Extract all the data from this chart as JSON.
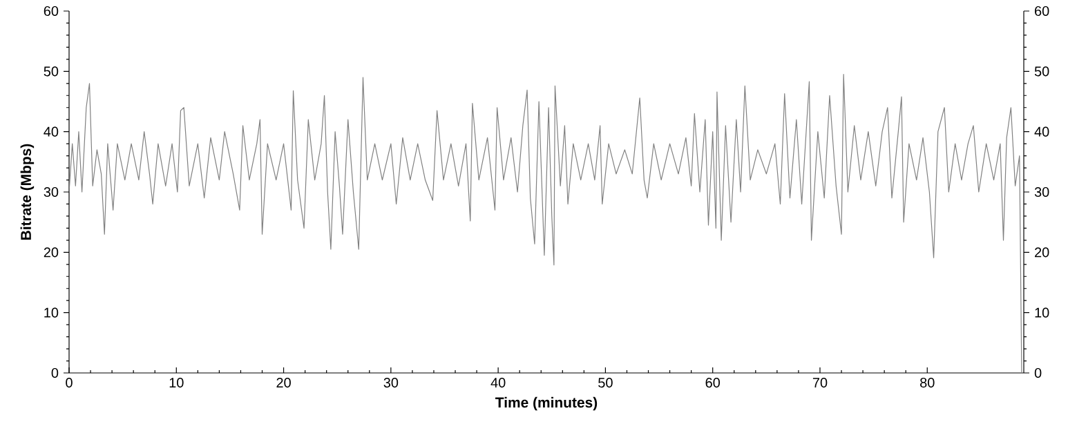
{
  "chart_data": {
    "type": "line",
    "xlabel": "Time (minutes)",
    "ylabel": "Bitrate (Mbps)",
    "xlim": [
      0,
      89
    ],
    "xticks": [
      0,
      10,
      20,
      30,
      40,
      50,
      60,
      70,
      80
    ],
    "ylim": [
      0,
      60
    ],
    "yticks": [
      0,
      10,
      20,
      30,
      40,
      50,
      60
    ],
    "y2lim": [
      0,
      60
    ],
    "y2ticks": [
      0,
      10,
      20,
      30,
      40,
      50,
      60
    ],
    "grid": false,
    "marker": "none",
    "line_style": "solid",
    "series": [
      {
        "color": "#808080",
        "x": [
          0,
          0.3,
          0.6,
          0.9,
          1.2,
          1.6,
          1.9,
          2.2,
          2.6,
          3.0,
          3.3,
          3.6,
          4.1,
          4.5,
          5.2,
          5.8,
          6.5,
          7.0,
          7.5,
          7.8,
          8.3,
          9.0,
          9.6,
          10.1,
          10.4,
          10.7,
          11.2,
          12.0,
          12.6,
          13.2,
          14.0,
          14.5,
          15.3,
          15.9,
          16.2,
          16.8,
          17.5,
          17.8,
          18.0,
          18.5,
          19.3,
          20.0,
          20.7,
          20.9,
          21.3,
          21.9,
          22.3,
          22.9,
          23.5,
          23.8,
          24.1,
          24.4,
          24.8,
          25.2,
          25.5,
          26.0,
          26.5,
          27.0,
          27.4,
          27.8,
          28.5,
          29.2,
          30.0,
          30.5,
          31.1,
          31.8,
          32.5,
          33.2,
          33.9,
          34.3,
          34.9,
          35.6,
          36.3,
          37.0,
          37.4,
          37.6,
          38.2,
          39.0,
          39.7,
          39.9,
          40.5,
          41.2,
          41.8,
          42.3,
          42.7,
          43.0,
          43.4,
          43.8,
          44.3,
          44.7,
          45.0,
          45.2,
          45.3,
          45.8,
          46.2,
          46.5,
          47.0,
          47.7,
          48.4,
          49.0,
          49.5,
          49.7,
          50.3,
          51.0,
          51.8,
          52.5,
          53.2,
          53.6,
          53.9,
          54.5,
          55.2,
          56.0,
          56.8,
          57.5,
          58.0,
          58.3,
          58.8,
          59.3,
          59.6,
          60.0,
          60.3,
          60.4,
          60.8,
          61.2,
          61.7,
          62.2,
          62.6,
          63.0,
          63.5,
          64.2,
          65.0,
          65.8,
          66.3,
          66.7,
          67.2,
          67.8,
          68.3,
          69.0,
          69.2,
          69.8,
          70.4,
          70.9,
          71.5,
          72.0,
          72.2,
          72.6,
          73.2,
          73.8,
          74.5,
          75.2,
          75.8,
          76.3,
          76.7,
          77.3,
          77.6,
          77.8,
          78.3,
          79.0,
          79.6,
          80.2,
          80.6,
          81.0,
          81.6,
          82.0,
          82.6,
          83.2,
          83.8,
          84.3,
          84.8,
          85.5,
          86.2,
          86.8,
          87.1,
          87.4,
          87.8,
          88.2,
          88.6,
          88.8
        ],
        "values": [
          30,
          38,
          31,
          40,
          30,
          44,
          48,
          31,
          37,
          33,
          23,
          38,
          27,
          38,
          32,
          38,
          32,
          40,
          33,
          28,
          38,
          31,
          38,
          30,
          43.5,
          44,
          31,
          38,
          29,
          39,
          32,
          40,
          33,
          27,
          41,
          32,
          38,
          42,
          23,
          38,
          32,
          38,
          27,
          46.8,
          32,
          24,
          42,
          32,
          38,
          46,
          30,
          20.5,
          40,
          31,
          23,
          42,
          30,
          20.5,
          49,
          32,
          38,
          32,
          38,
          28,
          39,
          32,
          38,
          32,
          28.6,
          43.5,
          32,
          38,
          31,
          38,
          25.2,
          44.7,
          32,
          39,
          27,
          44,
          32,
          39,
          30,
          41,
          46.9,
          29,
          21.4,
          45,
          19.5,
          44,
          26,
          17.9,
          47.6,
          31,
          41,
          28,
          38,
          32,
          38,
          32,
          41,
          28,
          38,
          33,
          37,
          33,
          45.6,
          32,
          29,
          38,
          32,
          38,
          33,
          39,
          31,
          43,
          30,
          42,
          24.5,
          40,
          24,
          46.6,
          22,
          41,
          25,
          42,
          30,
          47.6,
          32,
          37,
          33,
          38,
          28,
          46.3,
          29,
          42,
          28,
          48.3,
          22,
          40,
          29,
          46,
          31,
          23,
          49.5,
          30,
          41,
          32,
          40,
          31,
          40,
          44,
          29,
          40,
          45.8,
          25,
          38,
          32,
          39,
          30,
          19.1,
          40,
          44,
          30,
          38,
          32,
          38,
          41,
          30,
          38,
          32,
          38,
          22,
          39,
          44,
          31,
          36,
          0
        ]
      }
    ]
  }
}
